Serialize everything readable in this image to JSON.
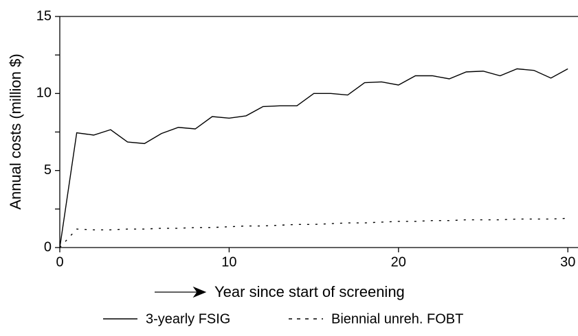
{
  "chart_data": {
    "type": "line",
    "xlabel": "Year since start of screening",
    "ylabel": "Annual costs (million $)",
    "xlim": [
      0,
      30.6
    ],
    "ylim": [
      0,
      15
    ],
    "xticks": [
      0,
      10,
      20,
      30
    ],
    "yticks": [
      0,
      5,
      10,
      15
    ],
    "yminorticks": [
      2.5,
      7.5,
      12.5
    ],
    "series": [
      {
        "name": "3-yearly FSIG",
        "color": "#000000",
        "style": "solid",
        "x": [
          0,
          1,
          2,
          3,
          4,
          5,
          6,
          7,
          8,
          9,
          10,
          11,
          12,
          13,
          14,
          15,
          16,
          17,
          18,
          19,
          20,
          21,
          22,
          23,
          24,
          25,
          26,
          27,
          28,
          29,
          30
        ],
        "values": [
          0,
          7.45,
          7.3,
          7.65,
          6.85,
          6.75,
          7.4,
          7.8,
          7.7,
          8.5,
          8.4,
          8.55,
          9.15,
          9.2,
          9.2,
          10.0,
          10.0,
          9.9,
          10.7,
          10.75,
          10.55,
          11.15,
          11.15,
          10.95,
          11.4,
          11.45,
          11.15,
          11.6,
          11.5,
          11.0,
          11.6
        ]
      },
      {
        "name": "Biennial unreh. FOBT",
        "color": "#000000",
        "style": "dotted",
        "x": [
          0,
          1,
          2,
          3,
          4,
          5,
          6,
          7,
          8,
          9,
          10,
          11,
          12,
          13,
          14,
          15,
          16,
          17,
          18,
          19,
          20,
          21,
          22,
          23,
          24,
          25,
          26,
          27,
          28,
          29,
          30
        ],
        "values": [
          0,
          1.2,
          1.15,
          1.15,
          1.2,
          1.2,
          1.25,
          1.25,
          1.3,
          1.3,
          1.35,
          1.4,
          1.4,
          1.45,
          1.5,
          1.5,
          1.55,
          1.6,
          1.6,
          1.65,
          1.7,
          1.7,
          1.75,
          1.75,
          1.8,
          1.8,
          1.8,
          1.85,
          1.85,
          1.85,
          1.9
        ]
      }
    ]
  }
}
